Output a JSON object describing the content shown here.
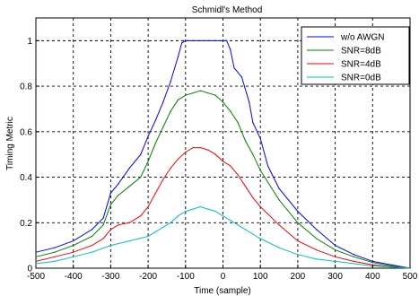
{
  "chart_data": {
    "type": "line",
    "title": "Schmidl's Method",
    "xlabel": "Time (sample)",
    "ylabel": "Timing Metric",
    "xlim": [
      -500,
      500
    ],
    "ylim": [
      0,
      1.1
    ],
    "xticks": [
      -500,
      -400,
      -300,
      -200,
      -100,
      0,
      100,
      200,
      300,
      400,
      500
    ],
    "yticks": [
      0,
      0.2,
      0.4,
      0.6,
      0.8,
      1
    ],
    "xtick_labels": [
      "-500",
      "-400",
      "-300",
      "-200",
      "-100",
      "0",
      "100",
      "200",
      "300",
      "400",
      "500"
    ],
    "ytick_labels": [
      "0",
      "0.2",
      "0.4",
      "0.6",
      "0.8",
      "1"
    ],
    "grid": true,
    "legend_position": "top-right",
    "series": [
      {
        "name": "w/o AWGN",
        "color": "#0000ff",
        "x": [
          -500,
          -450,
          -400,
          -350,
          -320,
          -300,
          -280,
          -250,
          -220,
          -200,
          -180,
          -160,
          -140,
          -120,
          -110,
          -100,
          -80,
          -60,
          -40,
          -20,
          0,
          10,
          20,
          30,
          50,
          70,
          80,
          100,
          120,
          150,
          200,
          250,
          300,
          350,
          400,
          450,
          500
        ],
        "y": [
          0.07,
          0.09,
          0.12,
          0.17,
          0.22,
          0.33,
          0.37,
          0.44,
          0.5,
          0.58,
          0.65,
          0.73,
          0.82,
          0.93,
          0.99,
          1.0,
          1.0,
          1.0,
          1.0,
          1.0,
          1.0,
          1.0,
          0.96,
          0.88,
          0.84,
          0.73,
          0.64,
          0.57,
          0.45,
          0.35,
          0.25,
          0.17,
          0.1,
          0.06,
          0.03,
          0.015,
          0.0
        ]
      },
      {
        "name": "SNR=8dB",
        "color": "#008000",
        "x": [
          -500,
          -450,
          -400,
          -350,
          -320,
          -300,
          -280,
          -250,
          -220,
          -200,
          -180,
          -160,
          -140,
          -120,
          -100,
          -80,
          -60,
          -40,
          -20,
          0,
          20,
          40,
          60,
          80,
          100,
          150,
          200,
          250,
          300,
          350,
          400,
          450,
          500
        ],
        "y": [
          0.05,
          0.07,
          0.1,
          0.14,
          0.19,
          0.28,
          0.32,
          0.36,
          0.4,
          0.47,
          0.55,
          0.62,
          0.69,
          0.74,
          0.76,
          0.77,
          0.78,
          0.77,
          0.76,
          0.73,
          0.69,
          0.64,
          0.56,
          0.5,
          0.43,
          0.3,
          0.2,
          0.13,
          0.08,
          0.05,
          0.025,
          0.01,
          0.0
        ]
      },
      {
        "name": "SNR=4dB",
        "color": "#ff0000",
        "x": [
          -500,
          -450,
          -400,
          -350,
          -320,
          -300,
          -280,
          -250,
          -220,
          -200,
          -180,
          -160,
          -140,
          -120,
          -100,
          -80,
          -60,
          -40,
          -20,
          0,
          20,
          40,
          60,
          80,
          100,
          150,
          200,
          250,
          300,
          350,
          400,
          450,
          500
        ],
        "y": [
          0.03,
          0.05,
          0.07,
          0.1,
          0.13,
          0.17,
          0.19,
          0.2,
          0.23,
          0.27,
          0.33,
          0.39,
          0.44,
          0.48,
          0.51,
          0.53,
          0.53,
          0.52,
          0.5,
          0.47,
          0.45,
          0.41,
          0.36,
          0.31,
          0.27,
          0.19,
          0.12,
          0.08,
          0.05,
          0.03,
          0.015,
          0.006,
          0.0
        ]
      },
      {
        "name": "SNR=0dB",
        "color": "#00c0c0",
        "x": [
          -500,
          -450,
          -400,
          -350,
          -300,
          -250,
          -200,
          -180,
          -160,
          -140,
          -120,
          -100,
          -80,
          -60,
          -40,
          -20,
          0,
          20,
          40,
          60,
          80,
          100,
          150,
          200,
          250,
          300,
          350,
          400,
          450,
          500
        ],
        "y": [
          0.02,
          0.03,
          0.05,
          0.07,
          0.1,
          0.12,
          0.14,
          0.16,
          0.18,
          0.2,
          0.23,
          0.25,
          0.26,
          0.27,
          0.26,
          0.25,
          0.23,
          0.21,
          0.19,
          0.17,
          0.15,
          0.13,
          0.09,
          0.06,
          0.04,
          0.03,
          0.02,
          0.01,
          0.005,
          0.0
        ]
      }
    ]
  }
}
